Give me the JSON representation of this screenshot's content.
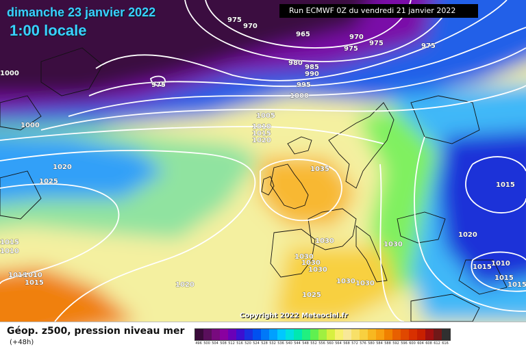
{
  "header": {
    "date": "dimanche 23 janvier 2022",
    "time": "1:00 locale",
    "run": "Run ECMWF 0Z du vendredi 21 janvier 2022"
  },
  "copyright": "Copyright 2022 Meteociel.fr",
  "footer": {
    "title": "Géop. z500, pression niveau mer",
    "subtitle": "(+48h)"
  },
  "scale": {
    "labels": [
      "496",
      "500",
      "504",
      "508",
      "512",
      "516",
      "520",
      "524",
      "528",
      "532",
      "536",
      "540",
      "544",
      "548",
      "552",
      "556",
      "560",
      "564",
      "568",
      "572",
      "576",
      "580",
      "584",
      "588",
      "592",
      "596",
      "600",
      "604",
      "608",
      "612",
      "616"
    ],
    "colors": [
      "#3a0a3a",
      "#5a0f5c",
      "#780a7e",
      "#8a00a0",
      "#6a00b8",
      "#3c10d0",
      "#1a30e0",
      "#0050f0",
      "#0078f8",
      "#00a0ff",
      "#00c8ff",
      "#00e0e0",
      "#00e8b0",
      "#20f080",
      "#60f050",
      "#a0f040",
      "#d8f040",
      "#f8f070",
      "#f8e898",
      "#f8e068",
      "#f8d040",
      "#f8b820",
      "#f8a010",
      "#f08000",
      "#e86000",
      "#e04800",
      "#d83000",
      "#c82000",
      "#a01010",
      "#701818",
      "#303030"
    ]
  },
  "isobar_labels": [
    {
      "text": "975"
    },
    {
      "text": "970"
    },
    {
      "text": "965"
    },
    {
      "text": "970"
    },
    {
      "text": "975"
    },
    {
      "text": "975"
    },
    {
      "text": "975"
    },
    {
      "text": "980"
    },
    {
      "text": "985"
    },
    {
      "text": "990"
    },
    {
      "text": "995"
    },
    {
      "text": "1000"
    },
    {
      "text": "1000"
    },
    {
      "text": "975"
    },
    {
      "text": "1000"
    },
    {
      "text": "1005"
    },
    {
      "text": "1010"
    },
    {
      "text": "1015"
    },
    {
      "text": "1020"
    },
    {
      "text": "1020"
    },
    {
      "text": "1025"
    },
    {
      "text": "1035"
    },
    {
      "text": "1015"
    },
    {
      "text": "1010"
    },
    {
      "text": "1015"
    },
    {
      "text": "1010"
    },
    {
      "text": "1015"
    },
    {
      "text": "1030"
    },
    {
      "text": "1030"
    },
    {
      "text": "1030"
    },
    {
      "text": "1030"
    },
    {
      "text": "1030"
    },
    {
      "text": "1030"
    },
    {
      "text": "1030"
    },
    {
      "text": "1020"
    },
    {
      "text": "1025"
    },
    {
      "text": "1015"
    },
    {
      "text": "1020"
    },
    {
      "text": "1015"
    },
    {
      "text": "1010"
    },
    {
      "text": "1015"
    },
    {
      "text": "1015"
    }
  ]
}
